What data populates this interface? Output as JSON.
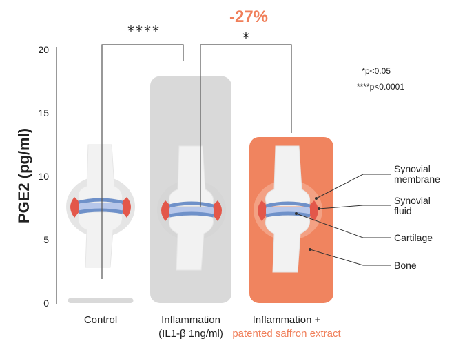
{
  "chart_data": {
    "type": "bar",
    "title": "",
    "xlabel": "",
    "ylabel": "PGE2 (pg/ml)",
    "ylim": [
      0,
      20
    ],
    "yticks": [
      "0",
      "5",
      "10",
      "15",
      "20"
    ],
    "categories": [
      {
        "line1": "Control",
        "line2": ""
      },
      {
        "line1": "Inflammation",
        "line2": "(IL1-β 1ng/ml)"
      },
      {
        "line1": "Inflammation +",
        "line2": "patented saffron extract"
      }
    ],
    "values": [
      0.4,
      17.9,
      13.1
    ],
    "colors": [
      "#d9d9d9",
      "#d9d9d9",
      "#f0845f"
    ],
    "accent_color": "#f07f5a",
    "comparisons": [
      {
        "from": 0,
        "to": 1,
        "label": "****"
      },
      {
        "from": 1,
        "to": 2,
        "label": "*"
      }
    ],
    "reduction_label": "-27%",
    "significance_notes": [
      "*p<0.05",
      "****p<0.0001"
    ],
    "anatomy_labels": [
      {
        "line1": "Synovial",
        "line2": "membrane"
      },
      {
        "line1": "Synovial",
        "line2": "fluid"
      },
      {
        "line1": "Cartilage",
        "line2": ""
      },
      {
        "line1": "Bone",
        "line2": ""
      }
    ],
    "grid": false,
    "legend": "none"
  }
}
